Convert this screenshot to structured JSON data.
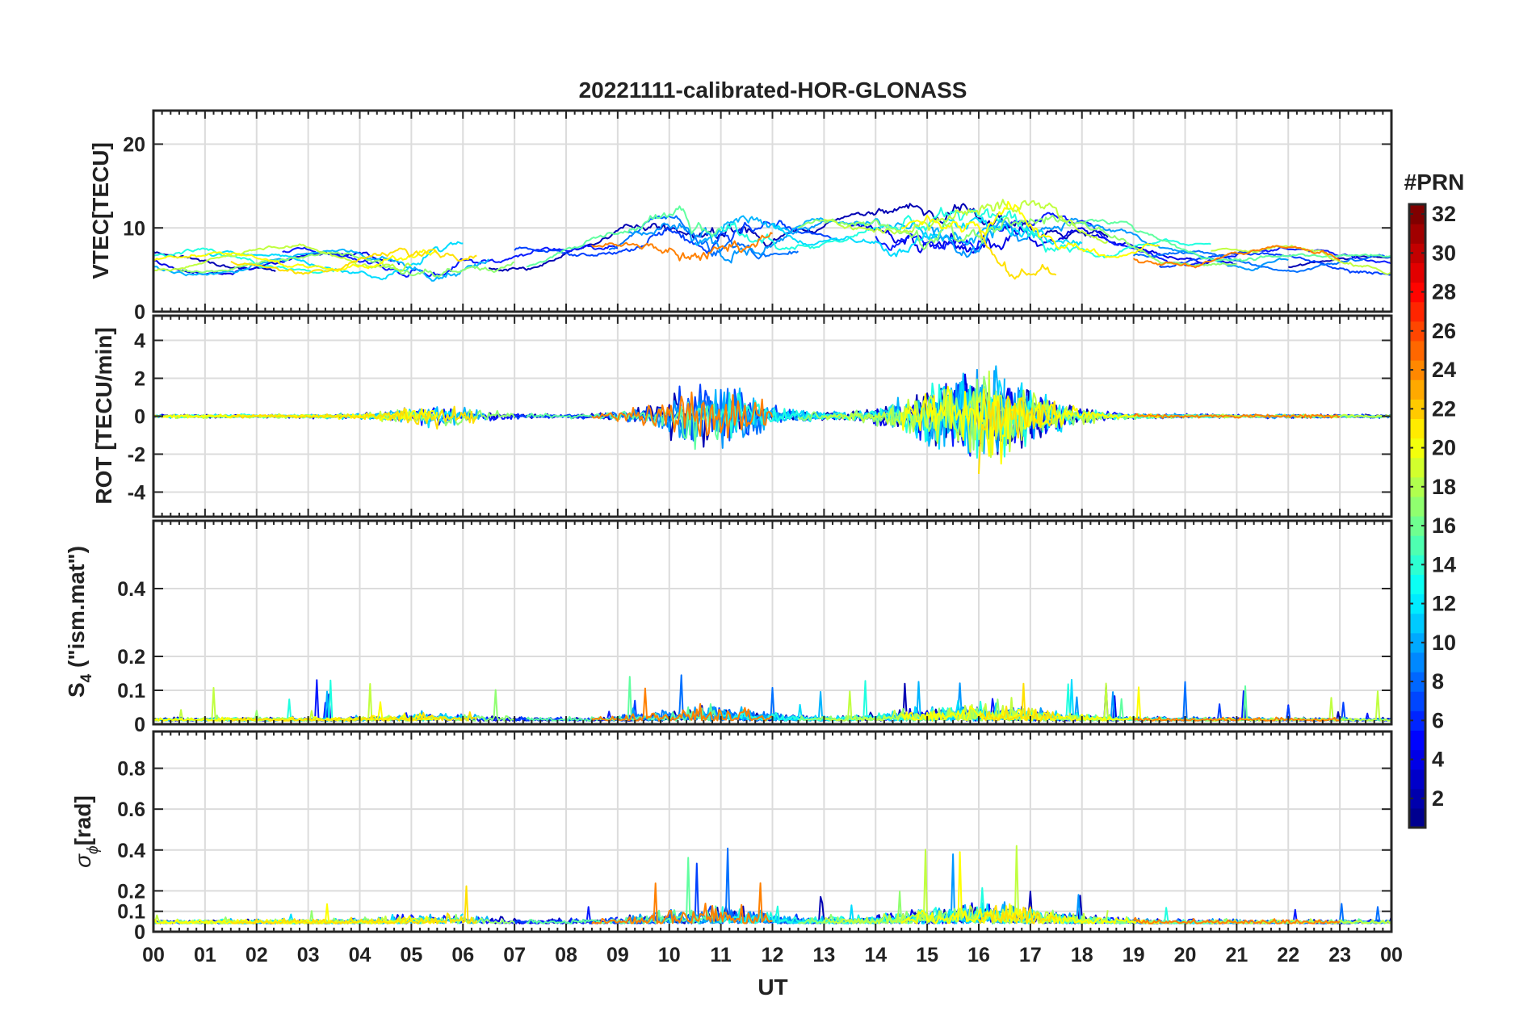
{
  "chart_data": [
    {
      "type": "line",
      "title": "20221111-calibrated-HOR-GLONASS",
      "ylabel": "VTEC[TECU]",
      "ylim": [
        0,
        24
      ],
      "yticks": [
        "0",
        "10",
        "20"
      ],
      "ytick_values": [
        0,
        10,
        20
      ]
    },
    {
      "type": "line",
      "ylabel": "ROT [TECU/min]",
      "ylim": [
        -5.3,
        5.3
      ],
      "yticks": [
        "-4",
        "-2",
        "0",
        "2",
        "4"
      ],
      "ytick_values": [
        -4,
        -2,
        0,
        2,
        4
      ]
    },
    {
      "type": "line",
      "ylabel_parts": [
        "S",
        "4",
        " (\"ism.mat\")"
      ],
      "ylim": [
        0,
        0.6
      ],
      "yticks": [
        "0",
        "0.1",
        "0.2",
        "0.4"
      ],
      "ytick_values": [
        0,
        0.1,
        0.2,
        0.4
      ]
    },
    {
      "type": "line",
      "ylabel_parts": [
        "σ",
        "ϕ",
        "[rad]"
      ],
      "ylim": [
        0,
        0.98
      ],
      "yticks": [
        "0",
        "0.1",
        "0.2",
        "0.4",
        "0.6",
        "0.8"
      ],
      "ytick_values": [
        0,
        0.1,
        0.2,
        0.4,
        0.6,
        0.8
      ]
    }
  ],
  "x_axis": {
    "xlabel": "UT",
    "xlim": [
      0,
      24
    ],
    "ticks": [
      "00",
      "01",
      "02",
      "03",
      "04",
      "05",
      "06",
      "07",
      "08",
      "09",
      "10",
      "11",
      "12",
      "13",
      "14",
      "15",
      "16",
      "17",
      "18",
      "19",
      "20",
      "21",
      "22",
      "23",
      "00"
    ]
  },
  "colorbar": {
    "label": "#PRN",
    "range": [
      1,
      32
    ],
    "ticks": [
      "2",
      "4",
      "6",
      "8",
      "10",
      "12",
      "14",
      "16",
      "18",
      "20",
      "22",
      "24",
      "26",
      "28",
      "30",
      "32"
    ],
    "tick_values": [
      2,
      4,
      6,
      8,
      10,
      12,
      14,
      16,
      18,
      20,
      22,
      24,
      26,
      28,
      30,
      32
    ],
    "colormap": "jet",
    "colors": [
      "#00008f",
      "#0000ff",
      "#0080ff",
      "#00ffff",
      "#80ff80",
      "#ffff00",
      "#ff8000",
      "#ff0000",
      "#800000"
    ]
  },
  "series_prn": [
    2,
    3,
    4,
    5,
    7,
    9,
    10,
    12,
    13,
    15,
    16,
    17,
    19,
    20,
    23
  ],
  "series_colors": {
    "2": "#0000b4",
    "3": "#0000e6",
    "4": "#0a1aff",
    "5": "#0040ff",
    "7": "#0070ff",
    "9": "#0098ff",
    "10": "#00b4ff",
    "12": "#00dcff",
    "13": "#20ffe0",
    "15": "#60ffa0",
    "16": "#90ff70",
    "17": "#c0ff40",
    "19": "#ffff00",
    "20": "#ffe000",
    "23": "#ff8000"
  }
}
